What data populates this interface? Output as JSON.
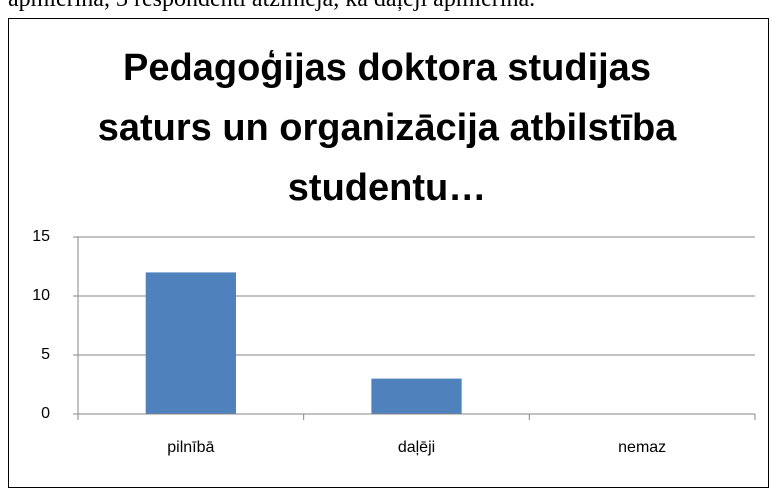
{
  "document_text": "apmierina, 3 respondenti atzīmēja, ka daļēji apmierina.",
  "chart_data": {
    "type": "bar",
    "title": "Pedagoģijas doktora studijas saturs un organizācija atbilstība studentu…",
    "categories": [
      "pilnībā",
      "daļēji",
      "nemaz"
    ],
    "values": [
      12,
      3,
      0
    ],
    "color": "#4f81bd",
    "ylim": [
      0,
      15
    ],
    "yticks": [
      0,
      5,
      10,
      15
    ],
    "grid": true
  }
}
